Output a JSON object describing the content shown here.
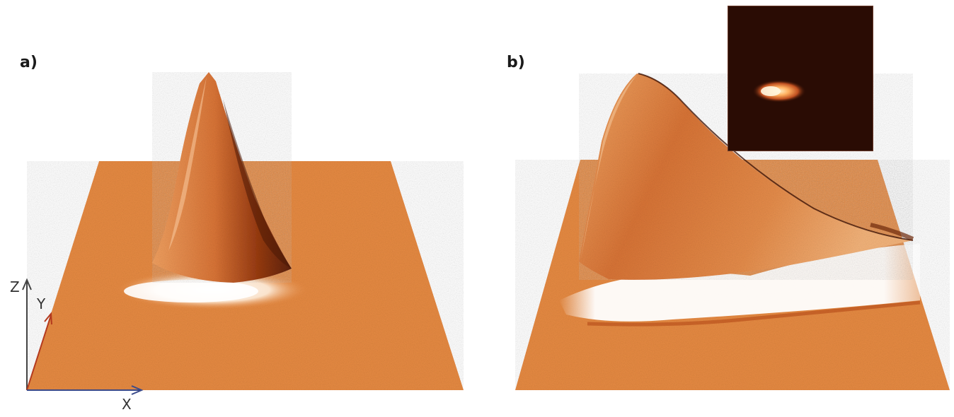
{
  "panels": {
    "a": {
      "label": "a)"
    },
    "b": {
      "label": "b)"
    }
  },
  "axes": {
    "z": "Z",
    "y": "Y",
    "x": "X"
  },
  "colors": {
    "surface": "#e68a42",
    "surface_dark": "#b44a18",
    "peak_shadow": "#6e2a0c",
    "highlight": "#fff6ec",
    "inset_bg": "#2a0c04",
    "inset_spot": "#ffc27a",
    "axis_arrow": "#444444",
    "axis_arrow_y": "#b43a1e",
    "axis_arrow_x": "#3a4a8a"
  }
}
